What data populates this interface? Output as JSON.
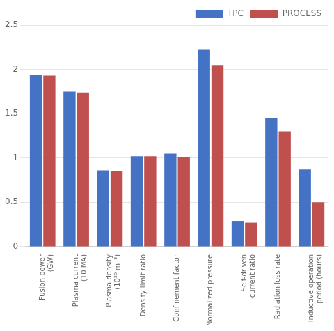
{
  "chart_data": {
    "type": "bar",
    "categories": [
      "Fusion power\n(GW)",
      "Plasma current\n(10 MA)",
      "Plasma density\n(10²⁰ m⁻³)",
      "Density limit ratio",
      "Confinement factor",
      "Normalized pressure",
      "Self-driven\ncurrent ratio",
      "Radiation loss rate",
      "Inductive operation\nperiod (hours)"
    ],
    "series": [
      {
        "name": "TPC",
        "color": "#4472C4",
        "values": [
          1.94,
          1.75,
          0.86,
          1.02,
          1.05,
          2.22,
          0.29,
          1.45,
          0.87
        ]
      },
      {
        "name": "PROCESS",
        "color": "#C0504D",
        "values": [
          1.93,
          1.74,
          0.85,
          1.02,
          1.01,
          2.05,
          0.27,
          1.3,
          0.5
        ]
      }
    ],
    "ylim": [
      0,
      2.5
    ],
    "yticks": [
      0,
      0.5,
      1,
      1.5,
      2,
      2.5
    ],
    "grid": true,
    "legend": "upper right"
  }
}
